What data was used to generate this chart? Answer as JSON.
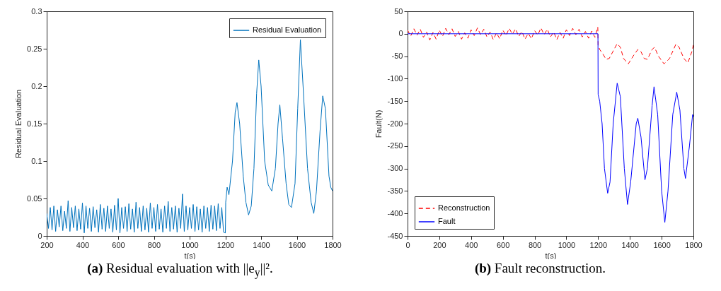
{
  "chart_data": [
    {
      "type": "line",
      "title": "(a) Residual evaluation with ||e$_{y}$||².",
      "xlabel": "t(s)",
      "ylabel": "Residual Evaluation",
      "xlim": [
        200,
        1800
      ],
      "xticks": [
        200,
        400,
        600,
        800,
        1000,
        1200,
        1400,
        1600,
        1800
      ],
      "ylim": [
        0,
        0.3
      ],
      "yticks": [
        0,
        0.05,
        0.1,
        0.15,
        0.2,
        0.25,
        0.3
      ],
      "grid": false,
      "legend": "top right",
      "line_style": "solid",
      "series": [
        {
          "name": "Residual Evaluation",
          "color": "#0072bd",
          "x": [
            200,
            210,
            220,
            230,
            240,
            250,
            260,
            270,
            280,
            290,
            300,
            310,
            320,
            330,
            340,
            350,
            360,
            370,
            380,
            390,
            400,
            410,
            420,
            430,
            440,
            450,
            460,
            470,
            480,
            490,
            500,
            510,
            520,
            530,
            540,
            550,
            560,
            570,
            580,
            590,
            600,
            610,
            620,
            630,
            640,
            650,
            660,
            670,
            680,
            690,
            700,
            710,
            720,
            730,
            740,
            750,
            760,
            770,
            780,
            790,
            800,
            810,
            820,
            830,
            840,
            850,
            860,
            870,
            880,
            890,
            900,
            910,
            920,
            930,
            940,
            950,
            960,
            970,
            980,
            990,
            1000,
            1010,
            1020,
            1030,
            1040,
            1050,
            1060,
            1070,
            1080,
            1090,
            1100,
            1110,
            1120,
            1130,
            1140,
            1150,
            1160,
            1170,
            1180,
            1190,
            1200,
            1202,
            1210,
            1220,
            1240,
            1255,
            1265,
            1280,
            1300,
            1315,
            1330,
            1345,
            1360,
            1375,
            1387,
            1400,
            1420,
            1440,
            1460,
            1480,
            1495,
            1505,
            1520,
            1540,
            1555,
            1570,
            1590,
            1605,
            1620,
            1635,
            1660,
            1680,
            1695,
            1710,
            1730,
            1745,
            1760,
            1780,
            1790,
            1800
          ],
          "values": [
            0.03,
            0.01,
            0.038,
            0.008,
            0.04,
            0.006,
            0.035,
            0.012,
            0.04,
            0.007,
            0.033,
            0.01,
            0.047,
            0.006,
            0.038,
            0.011,
            0.04,
            0.007,
            0.036,
            0.009,
            0.044,
            0.004,
            0.04,
            0.01,
            0.037,
            0.006,
            0.039,
            0.011,
            0.035,
            0.005,
            0.042,
            0.009,
            0.037,
            0.006,
            0.04,
            0.01,
            0.036,
            0.005,
            0.041,
            0.008,
            0.05,
            0.004,
            0.038,
            0.01,
            0.039,
            0.006,
            0.043,
            0.009,
            0.036,
            0.005,
            0.045,
            0.01,
            0.038,
            0.006,
            0.04,
            0.008,
            0.037,
            0.005,
            0.044,
            0.01,
            0.038,
            0.006,
            0.042,
            0.009,
            0.036,
            0.005,
            0.04,
            0.01,
            0.046,
            0.006,
            0.038,
            0.009,
            0.04,
            0.005,
            0.037,
            0.01,
            0.056,
            0.006,
            0.04,
            0.008,
            0.038,
            0.01,
            0.042,
            0.006,
            0.039,
            0.008,
            0.036,
            0.005,
            0.04,
            0.01,
            0.038,
            0.006,
            0.041,
            0.009,
            0.04,
            0.007,
            0.043,
            0.01,
            0.038,
            0.005,
            0.004,
            0.045,
            0.065,
            0.055,
            0.1,
            0.165,
            0.178,
            0.15,
            0.08,
            0.045,
            0.028,
            0.04,
            0.09,
            0.19,
            0.235,
            0.2,
            0.1,
            0.068,
            0.06,
            0.09,
            0.15,
            0.175,
            0.13,
            0.07,
            0.042,
            0.038,
            0.07,
            0.17,
            0.262,
            0.2,
            0.09,
            0.045,
            0.03,
            0.06,
            0.14,
            0.187,
            0.17,
            0.08,
            0.065,
            0.06
          ]
        }
      ]
    },
    {
      "type": "line",
      "title": "(b) Fault reconstruction.",
      "xlabel": "t(s)",
      "ylabel": "Fault(N)",
      "xlim": [
        0,
        1800
      ],
      "xticks": [
        0,
        200,
        400,
        600,
        800,
        1000,
        1200,
        1400,
        1600,
        1800
      ],
      "ylim": [
        -450,
        50
      ],
      "yticks": [
        -450,
        -400,
        -350,
        -300,
        -250,
        -200,
        -150,
        -100,
        -50,
        0,
        50
      ],
      "grid": false,
      "legend": "bottom left",
      "series": [
        {
          "name": "Reconstruction",
          "color": "#ff0000",
          "line_style": "dashed",
          "x": [
            0,
            20,
            40,
            60,
            80,
            100,
            120,
            140,
            160,
            180,
            200,
            220,
            240,
            260,
            280,
            300,
            320,
            340,
            360,
            380,
            400,
            420,
            440,
            460,
            480,
            500,
            520,
            540,
            560,
            580,
            600,
            620,
            640,
            660,
            680,
            700,
            720,
            740,
            760,
            780,
            800,
            820,
            840,
            860,
            880,
            900,
            920,
            940,
            960,
            980,
            1000,
            1020,
            1040,
            1060,
            1080,
            1100,
            1120,
            1140,
            1160,
            1180,
            1198,
            1200,
            1210,
            1230,
            1250,
            1270,
            1300,
            1320,
            1340,
            1360,
            1390,
            1420,
            1450,
            1470,
            1490,
            1510,
            1540,
            1555,
            1580,
            1615,
            1650,
            1690,
            1710,
            1740,
            1765,
            1790,
            1800
          ],
          "values": [
            8,
            -5,
            11,
            -3,
            10,
            -8,
            4,
            -14,
            3,
            -12,
            8,
            -6,
            12,
            -2,
            11,
            -6,
            5,
            -12,
            2,
            -10,
            9,
            -4,
            13,
            -2,
            10,
            -7,
            4,
            -13,
            2,
            -11,
            8,
            -4,
            12,
            -1,
            11,
            -6,
            5,
            -12,
            1,
            -11,
            7,
            -3,
            13,
            -2,
            10,
            -7,
            4,
            -13,
            3,
            -10,
            9,
            -4,
            12,
            -2,
            10,
            -7,
            5,
            -10,
            6,
            -8,
            15,
            -25,
            -35,
            -45,
            -57,
            -55,
            -35,
            -22,
            -30,
            -55,
            -67,
            -50,
            -35,
            -40,
            -55,
            -57,
            -35,
            -30,
            -50,
            -67,
            -55,
            -23,
            -30,
            -55,
            -65,
            -40,
            -25
          ]
        },
        {
          "name": "Fault",
          "color": "#0000ff",
          "line_style": "solid",
          "x": [
            0,
            1199,
            1200,
            1210,
            1225,
            1240,
            1260,
            1275,
            1295,
            1320,
            1340,
            1365,
            1385,
            1405,
            1440,
            1450,
            1470,
            1495,
            1510,
            1540,
            1552,
            1575,
            1600,
            1620,
            1640,
            1670,
            1695,
            1715,
            1740,
            1750,
            1775,
            1795,
            1800
          ],
          "values": [
            0,
            0,
            -135,
            -150,
            -200,
            -300,
            -355,
            -330,
            -200,
            -110,
            -140,
            -300,
            -380,
            -330,
            -200,
            -188,
            -230,
            -325,
            -300,
            -160,
            -118,
            -180,
            -350,
            -420,
            -350,
            -180,
            -130,
            -170,
            -300,
            -322,
            -250,
            -180,
            -185
          ]
        }
      ]
    }
  ]
}
